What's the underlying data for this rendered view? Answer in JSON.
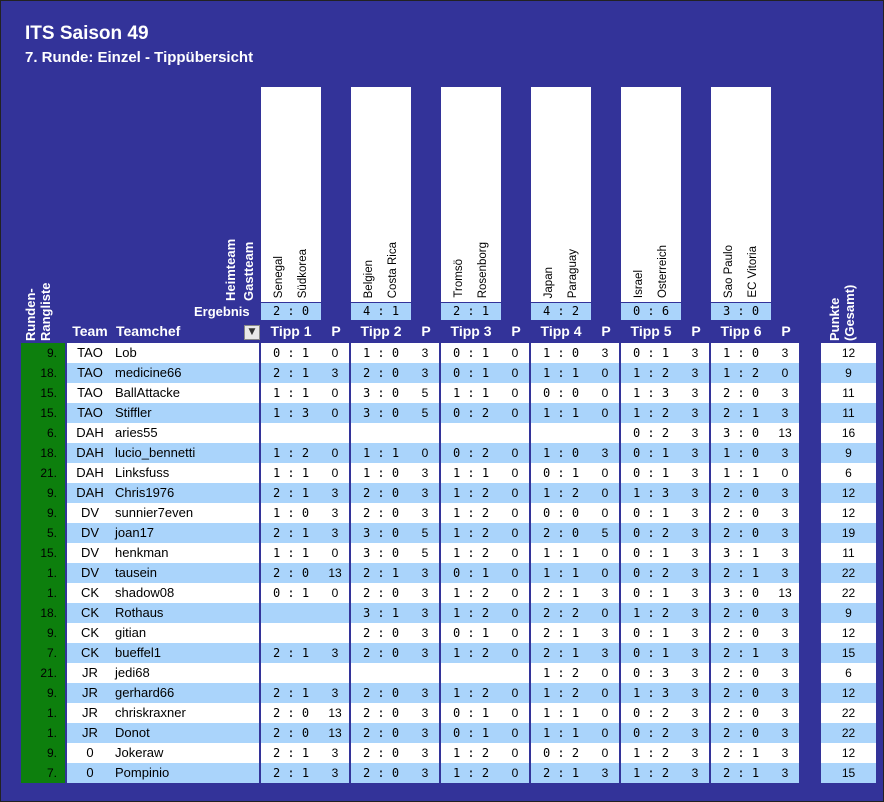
{
  "title": "ITS Saison 49",
  "subtitle": "7. Runde: Einzel - Tippübersicht",
  "labels": {
    "heimteam": "Heimteam",
    "gastteam": "Gastteam",
    "ergebnis": "Ergebnis",
    "rangliste": "Runden-\nRangliste",
    "punkte": "Punkte\n(Gesamt)",
    "team": "Team",
    "teamchef": "Teamchef",
    "p": "P"
  },
  "matches": [
    {
      "home": "Senegal",
      "away": "Südkorea",
      "result": "2 : 0",
      "tipp": "Tipp 1"
    },
    {
      "home": "Belgien",
      "away": "Costa Rica",
      "result": "4 : 1",
      "tipp": "Tipp 2"
    },
    {
      "home": "Tromsö",
      "away": "Rosenborg",
      "result": "2 : 1",
      "tipp": "Tipp 3"
    },
    {
      "home": "Japan",
      "away": "Paraguay",
      "result": "4 : 2",
      "tipp": "Tipp 4"
    },
    {
      "home": "Israel",
      "away": "Österreich",
      "result": "0 : 6",
      "tipp": "Tipp 5"
    },
    {
      "home": "Sao Paulo",
      "away": "EC Vitoria",
      "result": "3 : 0",
      "tipp": "Tipp 6"
    }
  ],
  "rows": [
    {
      "rank": "9.",
      "team": "TAO",
      "chef": "Lob",
      "t": [
        [
          "0 : 1",
          "0"
        ],
        [
          "1 : 0",
          "3"
        ],
        [
          "0 : 1",
          "0"
        ],
        [
          "1 : 0",
          "3"
        ],
        [
          "0 : 1",
          "3"
        ],
        [
          "1 : 0",
          "3"
        ]
      ],
      "total": "12"
    },
    {
      "rank": "18.",
      "team": "TAO",
      "chef": "medicine66",
      "t": [
        [
          "2 : 1",
          "3"
        ],
        [
          "2 : 0",
          "3"
        ],
        [
          "0 : 1",
          "0"
        ],
        [
          "1 : 1",
          "0"
        ],
        [
          "1 : 2",
          "3"
        ],
        [
          "1 : 2",
          "0"
        ]
      ],
      "total": "9"
    },
    {
      "rank": "15.",
      "team": "TAO",
      "chef": "BallAttacke",
      "t": [
        [
          "1 : 1",
          "0"
        ],
        [
          "3 : 0",
          "5"
        ],
        [
          "1 : 1",
          "0"
        ],
        [
          "0 : 0",
          "0"
        ],
        [
          "1 : 3",
          "3"
        ],
        [
          "2 : 0",
          "3"
        ]
      ],
      "total": "11"
    },
    {
      "rank": "15.",
      "team": "TAO",
      "chef": "Stiffler",
      "t": [
        [
          "1 : 3",
          "0"
        ],
        [
          "3 : 0",
          "5"
        ],
        [
          "0 : 2",
          "0"
        ],
        [
          "1 : 1",
          "0"
        ],
        [
          "1 : 2",
          "3"
        ],
        [
          "2 : 1",
          "3"
        ]
      ],
      "total": "11"
    },
    {
      "rank": "6.",
      "team": "DAH",
      "chef": "aries55",
      "t": [
        [
          "",
          ""
        ],
        [
          "",
          ""
        ],
        [
          "",
          ""
        ],
        [
          "",
          ""
        ],
        [
          "0 : 2",
          "3"
        ],
        [
          "3 : 0",
          "13"
        ]
      ],
      "total": "16"
    },
    {
      "rank": "18.",
      "team": "DAH",
      "chef": "lucio_bennetti",
      "t": [
        [
          "1 : 2",
          "0"
        ],
        [
          "1 : 1",
          "0"
        ],
        [
          "0 : 2",
          "0"
        ],
        [
          "1 : 0",
          "3"
        ],
        [
          "0 : 1",
          "3"
        ],
        [
          "1 : 0",
          "3"
        ]
      ],
      "total": "9"
    },
    {
      "rank": "21.",
      "team": "DAH",
      "chef": "Linksfuss",
      "t": [
        [
          "1 : 1",
          "0"
        ],
        [
          "1 : 0",
          "3"
        ],
        [
          "1 : 1",
          "0"
        ],
        [
          "0 : 1",
          "0"
        ],
        [
          "0 : 1",
          "3"
        ],
        [
          "1 : 1",
          "0"
        ]
      ],
      "total": "6"
    },
    {
      "rank": "9.",
      "team": "DAH",
      "chef": "Chris1976",
      "t": [
        [
          "2 : 1",
          "3"
        ],
        [
          "2 : 0",
          "3"
        ],
        [
          "1 : 2",
          "0"
        ],
        [
          "1 : 2",
          "0"
        ],
        [
          "1 : 3",
          "3"
        ],
        [
          "2 : 0",
          "3"
        ]
      ],
      "total": "12"
    },
    {
      "rank": "9.",
      "team": "DV",
      "chef": "sunnier7even",
      "t": [
        [
          "1 : 0",
          "3"
        ],
        [
          "2 : 0",
          "3"
        ],
        [
          "1 : 2",
          "0"
        ],
        [
          "0 : 0",
          "0"
        ],
        [
          "0 : 1",
          "3"
        ],
        [
          "2 : 0",
          "3"
        ]
      ],
      "total": "12"
    },
    {
      "rank": "5.",
      "team": "DV",
      "chef": "joan17",
      "t": [
        [
          "2 : 1",
          "3"
        ],
        [
          "3 : 0",
          "5"
        ],
        [
          "1 : 2",
          "0"
        ],
        [
          "2 : 0",
          "5"
        ],
        [
          "0 : 2",
          "3"
        ],
        [
          "2 : 0",
          "3"
        ]
      ],
      "total": "19"
    },
    {
      "rank": "15.",
      "team": "DV",
      "chef": "henkman",
      "t": [
        [
          "1 : 1",
          "0"
        ],
        [
          "3 : 0",
          "5"
        ],
        [
          "1 : 2",
          "0"
        ],
        [
          "1 : 1",
          "0"
        ],
        [
          "0 : 1",
          "3"
        ],
        [
          "3 : 1",
          "3"
        ]
      ],
      "total": "11"
    },
    {
      "rank": "1.",
      "team": "DV",
      "chef": "tausein",
      "t": [
        [
          "2 : 0",
          "13"
        ],
        [
          "2 : 1",
          "3"
        ],
        [
          "0 : 1",
          "0"
        ],
        [
          "1 : 1",
          "0"
        ],
        [
          "0 : 2",
          "3"
        ],
        [
          "2 : 1",
          "3"
        ]
      ],
      "total": "22"
    },
    {
      "rank": "1.",
      "team": "CK",
      "chef": "shadow08",
      "t": [
        [
          "0 : 1",
          "0"
        ],
        [
          "2 : 0",
          "3"
        ],
        [
          "1 : 2",
          "0"
        ],
        [
          "2 : 1",
          "3"
        ],
        [
          "0 : 1",
          "3"
        ],
        [
          "3 : 0",
          "13"
        ]
      ],
      "total": "22"
    },
    {
      "rank": "18.",
      "team": "CK",
      "chef": "Rothaus",
      "t": [
        [
          "",
          ""
        ],
        [
          "3 : 1",
          "3"
        ],
        [
          "1 : 2",
          "0"
        ],
        [
          "2 : 2",
          "0"
        ],
        [
          "1 : 2",
          "3"
        ],
        [
          "2 : 0",
          "3"
        ]
      ],
      "total": "9"
    },
    {
      "rank": "9.",
      "team": "CK",
      "chef": "gitian",
      "t": [
        [
          "",
          ""
        ],
        [
          "2 : 0",
          "3"
        ],
        [
          "0 : 1",
          "0"
        ],
        [
          "2 : 1",
          "3"
        ],
        [
          "0 : 1",
          "3"
        ],
        [
          "2 : 0",
          "3"
        ]
      ],
      "total": "12"
    },
    {
      "rank": "7.",
      "team": "CK",
      "chef": "bueffel1",
      "t": [
        [
          "2 : 1",
          "3"
        ],
        [
          "2 : 0",
          "3"
        ],
        [
          "1 : 2",
          "0"
        ],
        [
          "2 : 1",
          "3"
        ],
        [
          "0 : 1",
          "3"
        ],
        [
          "2 : 1",
          "3"
        ]
      ],
      "total": "15"
    },
    {
      "rank": "21.",
      "team": "JR",
      "chef": "jedi68",
      "t": [
        [
          "",
          ""
        ],
        [
          "",
          ""
        ],
        [
          "",
          ""
        ],
        [
          "1 : 2",
          "0"
        ],
        [
          "0 : 3",
          "3"
        ],
        [
          "2 : 0",
          "3"
        ]
      ],
      "total": "6"
    },
    {
      "rank": "9.",
      "team": "JR",
      "chef": "gerhard66",
      "t": [
        [
          "2 : 1",
          "3"
        ],
        [
          "2 : 0",
          "3"
        ],
        [
          "1 : 2",
          "0"
        ],
        [
          "1 : 2",
          "0"
        ],
        [
          "1 : 3",
          "3"
        ],
        [
          "2 : 0",
          "3"
        ]
      ],
      "total": "12"
    },
    {
      "rank": "1.",
      "team": "JR",
      "chef": "chriskraxner",
      "t": [
        [
          "2 : 0",
          "13"
        ],
        [
          "2 : 0",
          "3"
        ],
        [
          "0 : 1",
          "0"
        ],
        [
          "1 : 1",
          "0"
        ],
        [
          "0 : 2",
          "3"
        ],
        [
          "2 : 0",
          "3"
        ]
      ],
      "total": "22"
    },
    {
      "rank": "1.",
      "team": "JR",
      "chef": "Donot",
      "t": [
        [
          "2 : 0",
          "13"
        ],
        [
          "2 : 0",
          "3"
        ],
        [
          "0 : 1",
          "0"
        ],
        [
          "1 : 1",
          "0"
        ],
        [
          "0 : 2",
          "3"
        ],
        [
          "2 : 0",
          "3"
        ]
      ],
      "total": "22"
    },
    {
      "rank": "9.",
      "team": "0",
      "chef": "Jokeraw",
      "t": [
        [
          "2 : 1",
          "3"
        ],
        [
          "2 : 0",
          "3"
        ],
        [
          "1 : 2",
          "0"
        ],
        [
          "0 : 2",
          "0"
        ],
        [
          "1 : 2",
          "3"
        ],
        [
          "2 : 1",
          "3"
        ]
      ],
      "total": "12"
    },
    {
      "rank": "7.",
      "team": "0",
      "chef": "Pompinio",
      "t": [
        [
          "2 : 1",
          "3"
        ],
        [
          "2 : 0",
          "3"
        ],
        [
          "1 : 2",
          "0"
        ],
        [
          "2 : 1",
          "3"
        ],
        [
          "1 : 2",
          "3"
        ],
        [
          "2 : 1",
          "3"
        ]
      ],
      "total": "15"
    }
  ],
  "colors": {
    "background": "#333399",
    "row_light": "#ffffff",
    "row_blue": "#aad4fb",
    "rank_green": "#0d7f0d"
  }
}
